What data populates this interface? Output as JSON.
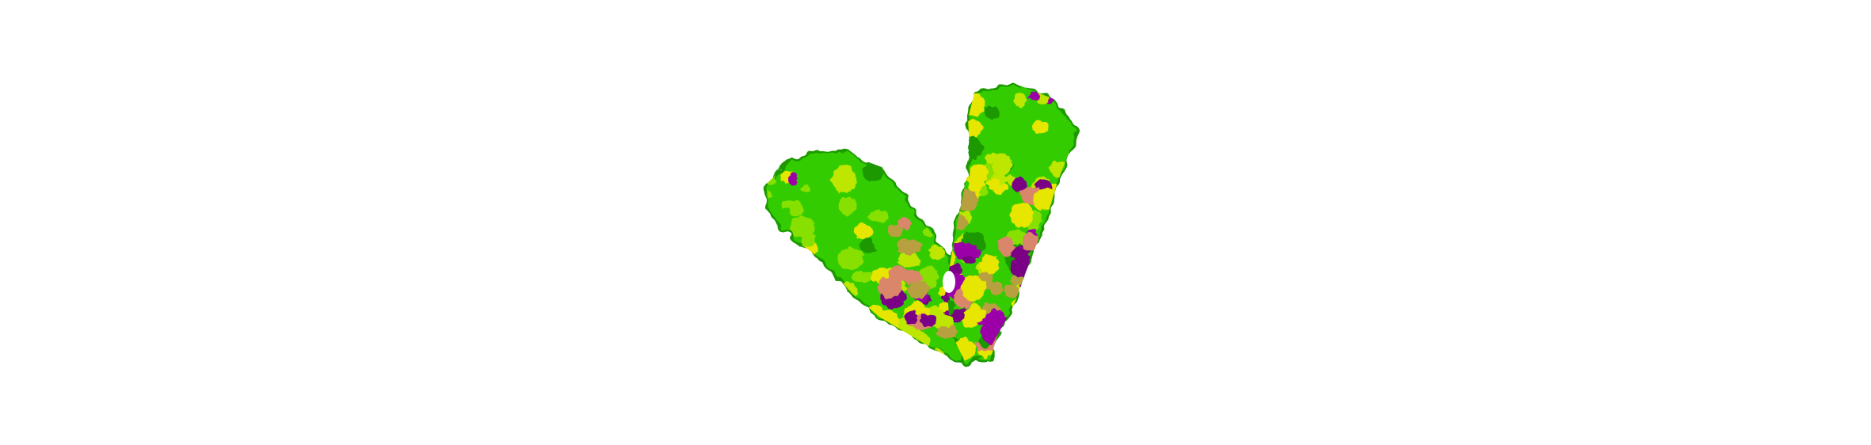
{
  "scene": {
    "background_color": "#ffffff",
    "subject_icon": "protein-surface-icon",
    "colors": {
      "base_green": "#33cc00",
      "light_green": "#88e000",
      "yellow_green": "#bde600",
      "yellow": "#e6e600",
      "salmon": "#d9866b",
      "tan": "#b8a040",
      "magenta": "#9b00a8",
      "dark_magenta": "#7a0086",
      "shadow_green": "#1f9900"
    }
  }
}
